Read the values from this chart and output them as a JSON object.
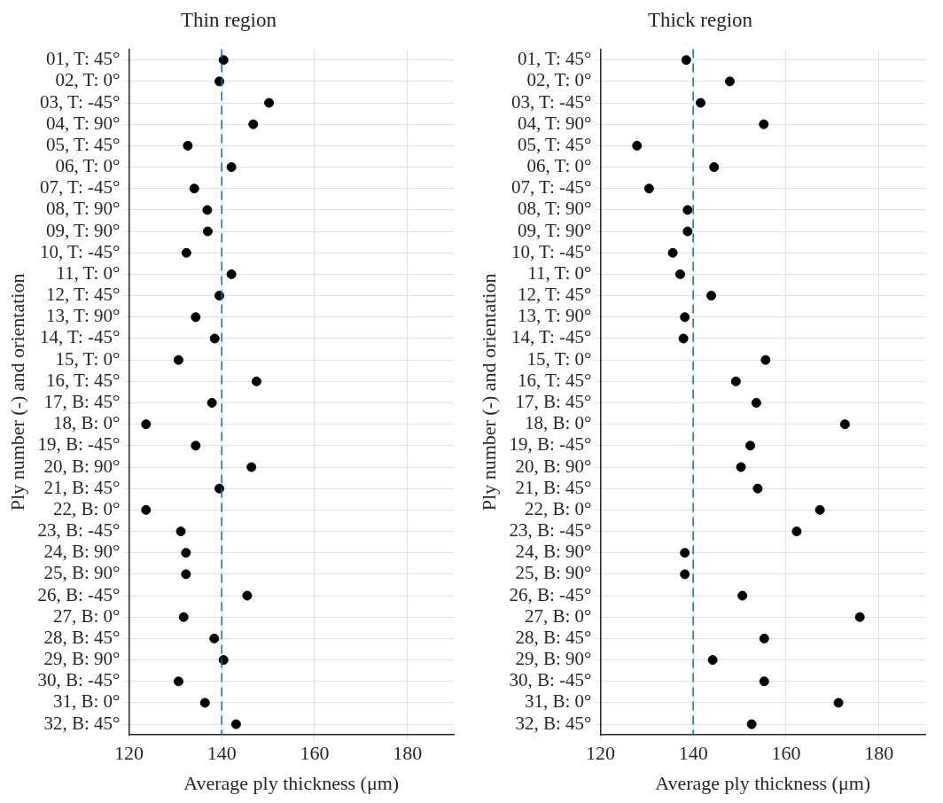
{
  "chart_data": [
    {
      "type": "scatter",
      "title": "Thin region",
      "xlabel": "Average ply thickness (μm)",
      "ylabel": "Ply number (-) and orientation",
      "orientation": "horizontal",
      "categories": [
        "01, T: 45°",
        "02, T: 0°",
        "03, T: -45°",
        "04, T: 90°",
        "05, T: 45°",
        "06, T: 0°",
        "07, T: -45°",
        "08, T: 90°",
        "09, T: 90°",
        "10, T: -45°",
        "11, T: 0°",
        "12, T: 45°",
        "13, T: 90°",
        "14, T: -45°",
        "15, T: 0°",
        "16, T: 45°",
        "17, B: 45°",
        "18, B: 0°",
        "19, B: -45°",
        "20, B: 90°",
        "21, B: 45°",
        "22, B: 0°",
        "23, B: -45°",
        "24, B: 90°",
        "25, B: 90°",
        "26, B: -45°",
        "27, B: 0°",
        "28, B: 45°",
        "29, B: 90°",
        "30, B: -45°",
        "31, B: 0°",
        "32, B: 45°"
      ],
      "series": [
        {
          "color": "#000000",
          "values": [
            140.4,
            139.5,
            150.2,
            146.8,
            132.7,
            142.1,
            134.1,
            136.9,
            137.0,
            132.4,
            142.1,
            139.5,
            134.4,
            138.5,
            130.7,
            147.5,
            137.9,
            123.7,
            134.4,
            146.4,
            139.5,
            123.7,
            131.2,
            132.3,
            132.3,
            145.5,
            131.8,
            138.4,
            140.4,
            130.7,
            136.4,
            143.1
          ]
        }
      ],
      "xlim": [
        120,
        190
      ],
      "xticks": [
        120,
        140,
        160,
        180
      ],
      "grid": true,
      "legend": false,
      "marker": "circle",
      "ref_lines": [
        {
          "axis": "x",
          "value": 140,
          "color": "#0072bd",
          "line_style": "dashed"
        }
      ]
    },
    {
      "type": "scatter",
      "title": "Thick region",
      "xlabel": "Average ply thickness (μm)",
      "ylabel": "Ply number (-) and orientation",
      "orientation": "horizontal",
      "categories": [
        "01, T: 45°",
        "02, T: 0°",
        "03, T: -45°",
        "04, T: 90°",
        "05, T: 45°",
        "06, T: 0°",
        "07, T: -45°",
        "08, T: 90°",
        "09, T: 90°",
        "10, T: -45°",
        "11, T: 0°",
        "12, T: 45°",
        "13, T: 90°",
        "14, T: -45°",
        "15, T: 0°",
        "16, T: 45°",
        "17, B: 45°",
        "18, B: 0°",
        "19, B: -45°",
        "20, B: 90°",
        "21, B: 45°",
        "22, B: 0°",
        "23, B: -45°",
        "24, B: 90°",
        "25, B: 90°",
        "26, B: -45°",
        "27, B: 0°",
        "28, B: 45°",
        "29, B: 90°",
        "30, B: -45°",
        "31, B: 0°",
        "32, B: 45°"
      ],
      "series": [
        {
          "color": "#000000",
          "values": [
            138.5,
            147.9,
            141.6,
            155.2,
            127.9,
            144.5,
            130.5,
            138.8,
            138.8,
            135.6,
            137.2,
            143.9,
            138.2,
            137.9,
            155.6,
            149.2,
            153.6,
            172.7,
            152.3,
            150.3,
            153.9,
            167.3,
            162.3,
            138.2,
            138.2,
            150.6,
            175.9,
            155.3,
            144.2,
            155.3,
            171.3,
            152.6
          ]
        }
      ],
      "xlim": [
        120,
        190
      ],
      "xticks": [
        120,
        140,
        160,
        180
      ],
      "grid": true,
      "legend": false,
      "marker": "circle",
      "ref_lines": [
        {
          "axis": "x",
          "value": 140,
          "color": "#0072bd",
          "line_style": "dashed"
        }
      ]
    }
  ]
}
